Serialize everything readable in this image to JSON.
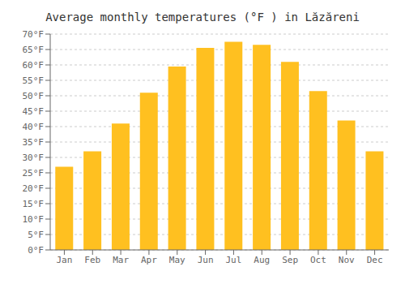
{
  "chart_data": {
    "type": "bar",
    "title": "Average monthly temperatures (°F ) in Lăzăreni",
    "categories": [
      "Jan",
      "Feb",
      "Mar",
      "Apr",
      "May",
      "Jun",
      "Jul",
      "Aug",
      "Sep",
      "Oct",
      "Nov",
      "Dec"
    ],
    "values": [
      27,
      32,
      41,
      51,
      59.5,
      65.5,
      67.5,
      66.5,
      61,
      51.5,
      42,
      32
    ],
    "color": "#FFC020",
    "ylim": [
      0,
      70
    ],
    "yticks": [
      {
        "value": 0,
        "label": "0°F"
      },
      {
        "value": 5,
        "label": "5°F"
      },
      {
        "value": 10,
        "label": "10°F"
      },
      {
        "value": 15,
        "label": "15°F"
      },
      {
        "value": 20,
        "label": "20°F"
      },
      {
        "value": 25,
        "label": "25°F"
      },
      {
        "value": 30,
        "label": "30°F"
      },
      {
        "value": 35,
        "label": "35°F"
      },
      {
        "value": 40,
        "label": "40°F"
      },
      {
        "value": 45,
        "label": "45°F"
      },
      {
        "value": 50,
        "label": "50°F"
      },
      {
        "value": 55,
        "label": "55°F"
      },
      {
        "value": 60,
        "label": "60°F"
      },
      {
        "value": 65,
        "label": "65°F"
      },
      {
        "value": 70,
        "label": "70°F"
      }
    ],
    "grid": true
  }
}
